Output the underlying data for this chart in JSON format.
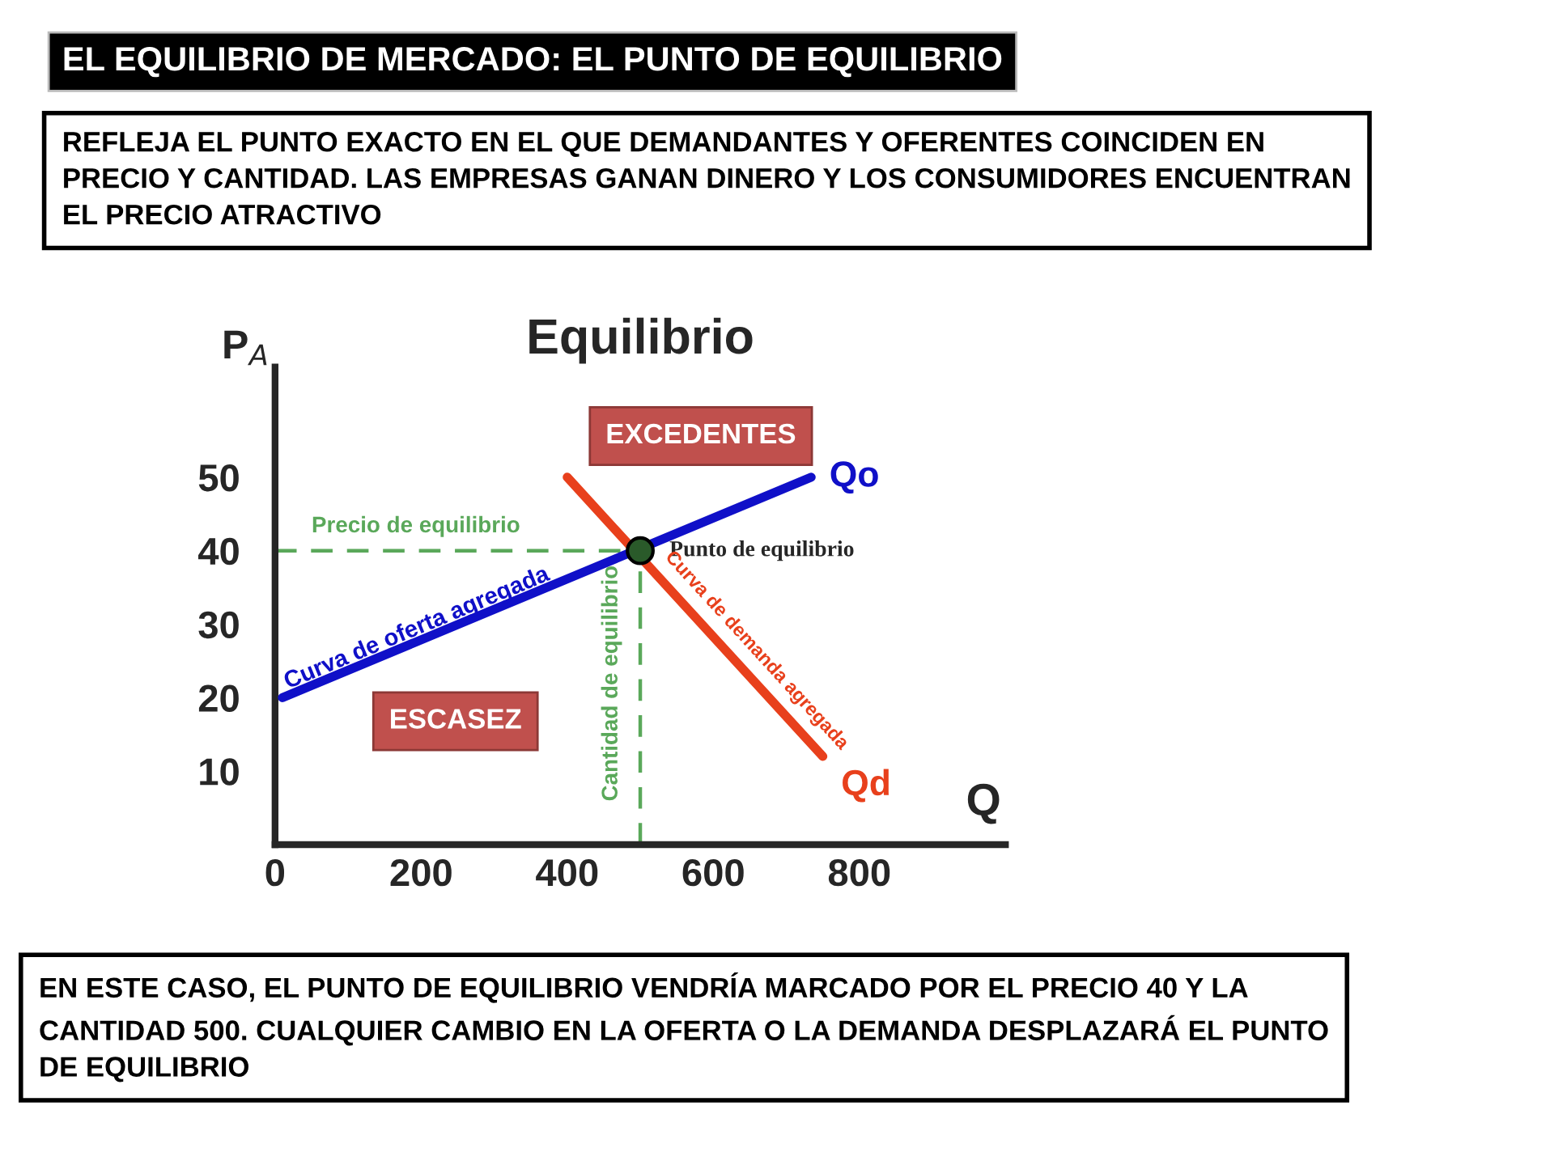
{
  "chart_data": {
    "type": "line",
    "title": "Equilibrio",
    "xlabel": "Q",
    "ylabel": "P$_{A}$",
    "series": [
      {
        "name": "Qo",
        "color": "#1010c8",
        "x": [
          10,
          734
        ],
        "values": [
          20,
          50
        ]
      },
      {
        "name": "Qd",
        "color": "#e8401c",
        "x": [
          400,
          750
        ],
        "values": [
          50,
          12
        ]
      },
      {
        "type": "scatter",
        "color": "#2a5a2a",
        "marker": "circle",
        "x": [
          500
        ],
        "values": [
          40
        ]
      }
    ],
    "xlim": [
      0,
      1000
    ],
    "ylim": [
      0,
      65
    ],
    "xticks": [
      0,
      200,
      400,
      600,
      800
    ],
    "yticks": [
      10,
      20,
      30,
      40,
      50
    ],
    "ref_lines": [
      {
        "axis": "y",
        "value": 40,
        "label": "Precio de equilibrio",
        "color": "#5aa85a",
        "line_style": "dashed"
      },
      {
        "axis": "x",
        "value": 500,
        "label": "Cantidad de equilibrio",
        "color": "#5aa85a",
        "line_style": "dashed"
      }
    ],
    "annotations": [
      "EL EQUILIBRIO DE MERCADO: EL PUNTO DE EQUILIBRIO",
      "REFLEJA EL PUNTO EXACTO EN EL QUE DEMANDANTES Y OFERENTES COINCIDEN EN PRECIO Y CANTIDAD. LAS EMPRESAS GANAN DINERO Y LOS CONSUMIDORES ENCUENTRAN EL PRECIO ATRACTIVO",
      "EN ESTE CASO, EL PUNTO DE EQUILIBRIO VENDRÍA MARCADO POR EL PRECIO 40 Y LA CANTIDAD 500. CUALQUIER CAMBIO EN LA OFERTA O LA DEMANDA DESPLAZARÁ EL PUNTO DE EQUILIBRIO",
      "EXCEDENTES",
      "ESCASEZ",
      {
        "text": "Punto de equilibrio",
        "x": 500,
        "y": 40
      },
      {
        "text": "Curva de oferta agregada",
        "x": 200,
        "y": 28
      },
      {
        "text": "Curva de demanda agregada",
        "x": 620,
        "y": 27
      }
    ],
    "grid": false,
    "legend": false,
    "line_style": "solid"
  }
}
